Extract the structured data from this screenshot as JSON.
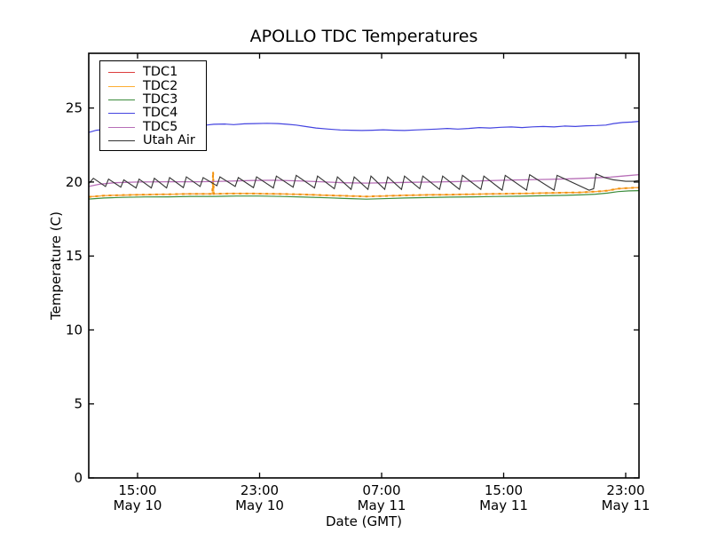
{
  "chart_data": {
    "type": "line",
    "title": "APOLLO TDC Temperatures",
    "xlabel": "Date (GMT)",
    "ylabel": "Temperature (C)",
    "grid": false,
    "legend_position": "upper left",
    "x_unit": "hours since May 10 12:00 GMT",
    "xlim": [
      -0.2,
      35.87
    ],
    "ylim": [
      0,
      28.7
    ],
    "y_ticks": [
      {
        "v": 0,
        "label": "0"
      },
      {
        "v": 5,
        "label": "5"
      },
      {
        "v": 10,
        "label": "10"
      },
      {
        "v": 15,
        "label": "15"
      },
      {
        "v": 20,
        "label": "20"
      },
      {
        "v": 25,
        "label": "25"
      }
    ],
    "x_ticks": [
      {
        "h": 3,
        "time": "15:00",
        "date": "May 10"
      },
      {
        "h": 11,
        "time": "23:00",
        "date": "May 10"
      },
      {
        "h": 19,
        "time": "07:00",
        "date": "May 11"
      },
      {
        "h": 27,
        "time": "15:00",
        "date": "May 11"
      },
      {
        "h": 35,
        "time": "23:00",
        "date": "May 11"
      }
    ],
    "series": [
      {
        "name": "TDC1",
        "color": "#dd3e3e",
        "width": 1.2,
        "points": [
          [
            -0.2,
            19.0
          ],
          [
            0.8,
            19.08
          ],
          [
            2,
            19.12
          ],
          [
            3.5,
            19.15
          ],
          [
            5,
            19.17
          ],
          [
            6.5,
            19.2
          ],
          [
            8,
            19.2
          ],
          [
            9,
            19.22
          ],
          [
            10.5,
            19.22
          ],
          [
            12,
            19.2
          ],
          [
            13.5,
            19.17
          ],
          [
            15,
            19.12
          ],
          [
            16.5,
            19.07
          ],
          [
            18,
            19.02
          ],
          [
            19,
            19.05
          ],
          [
            20.5,
            19.1
          ],
          [
            22,
            19.13
          ],
          [
            23.5,
            19.15
          ],
          [
            25,
            19.18
          ],
          [
            26.5,
            19.2
          ],
          [
            28,
            19.22
          ],
          [
            29.5,
            19.25
          ],
          [
            31,
            19.28
          ],
          [
            32,
            19.3
          ],
          [
            33,
            19.35
          ],
          [
            33.8,
            19.42
          ],
          [
            34.5,
            19.55
          ],
          [
            35.2,
            19.6
          ],
          [
            35.87,
            19.62
          ]
        ]
      },
      {
        "name": "TDC2",
        "color": "#fdae33",
        "width": 1.2,
        "dash_color": "#f0900e",
        "points": [
          [
            -0.2,
            19.0
          ],
          [
            0.8,
            19.08
          ],
          [
            2,
            19.12
          ],
          [
            3.5,
            19.15
          ],
          [
            5,
            19.17
          ],
          [
            6.5,
            19.2
          ],
          [
            7.9,
            19.2
          ],
          [
            7.95,
            20.7
          ],
          [
            8.0,
            19.2
          ],
          [
            9,
            19.22
          ],
          [
            10.5,
            19.22
          ],
          [
            12,
            19.2
          ],
          [
            13.5,
            19.17
          ],
          [
            15,
            19.12
          ],
          [
            16.5,
            19.07
          ],
          [
            18,
            19.02
          ],
          [
            19,
            19.05
          ],
          [
            20.5,
            19.1
          ],
          [
            22,
            19.13
          ],
          [
            23.5,
            19.15
          ],
          [
            25,
            19.18
          ],
          [
            26.5,
            19.2
          ],
          [
            28,
            19.22
          ],
          [
            29.5,
            19.25
          ],
          [
            31,
            19.28
          ],
          [
            32,
            19.3
          ],
          [
            33,
            19.35
          ],
          [
            33.8,
            19.42
          ],
          [
            34.5,
            19.55
          ],
          [
            35.2,
            19.6
          ],
          [
            35.87,
            19.62
          ]
        ]
      },
      {
        "name": "TDC3",
        "color": "#3c8c3c",
        "width": 1.2,
        "points": [
          [
            -0.2,
            18.85
          ],
          [
            0.8,
            18.92
          ],
          [
            2,
            18.96
          ],
          [
            3.5,
            18.99
          ],
          [
            5,
            19.0
          ],
          [
            6.5,
            19.03
          ],
          [
            8,
            19.03
          ],
          [
            9.5,
            19.05
          ],
          [
            11,
            19.05
          ],
          [
            12.5,
            19.02
          ],
          [
            14,
            18.98
          ],
          [
            15.5,
            18.93
          ],
          [
            17,
            18.88
          ],
          [
            18,
            18.84
          ],
          [
            19,
            18.87
          ],
          [
            20.5,
            18.92
          ],
          [
            22,
            18.95
          ],
          [
            23.5,
            18.98
          ],
          [
            25,
            19.0
          ],
          [
            26.5,
            19.02
          ],
          [
            28,
            19.04
          ],
          [
            29.5,
            19.07
          ],
          [
            31,
            19.1
          ],
          [
            32,
            19.13
          ],
          [
            33,
            19.18
          ],
          [
            33.8,
            19.25
          ],
          [
            34.5,
            19.35
          ],
          [
            35.2,
            19.4
          ],
          [
            35.87,
            19.42
          ]
        ]
      },
      {
        "name": "TDC4",
        "color": "#4444e0",
        "width": 1.2,
        "points": [
          [
            -0.2,
            23.35
          ],
          [
            0.3,
            23.5
          ],
          [
            0.8,
            23.55
          ],
          [
            1.5,
            23.62
          ],
          [
            2.5,
            23.7
          ],
          [
            3.5,
            23.75
          ],
          [
            4.5,
            23.8
          ],
          [
            5.5,
            23.82
          ],
          [
            6.3,
            23.87
          ],
          [
            7,
            23.88
          ],
          [
            7.5,
            23.85
          ],
          [
            8,
            23.9
          ],
          [
            8.7,
            23.92
          ],
          [
            9.3,
            23.88
          ],
          [
            10,
            23.93
          ],
          [
            10.7,
            23.95
          ],
          [
            11.5,
            23.97
          ],
          [
            12.2,
            23.95
          ],
          [
            12.8,
            23.9
          ],
          [
            13.4,
            23.85
          ],
          [
            14,
            23.75
          ],
          [
            14.7,
            23.65
          ],
          [
            15.5,
            23.58
          ],
          [
            16.3,
            23.52
          ],
          [
            17,
            23.5
          ],
          [
            17.7,
            23.48
          ],
          [
            18.4,
            23.5
          ],
          [
            19.1,
            23.53
          ],
          [
            19.8,
            23.5
          ],
          [
            20.5,
            23.48
          ],
          [
            21.2,
            23.52
          ],
          [
            21.9,
            23.55
          ],
          [
            22.6,
            23.58
          ],
          [
            23.3,
            23.62
          ],
          [
            24,
            23.58
          ],
          [
            24.7,
            23.62
          ],
          [
            25.4,
            23.68
          ],
          [
            26.1,
            23.65
          ],
          [
            26.8,
            23.7
          ],
          [
            27.5,
            23.72
          ],
          [
            28.2,
            23.68
          ],
          [
            28.9,
            23.73
          ],
          [
            29.6,
            23.75
          ],
          [
            30.3,
            23.72
          ],
          [
            31,
            23.78
          ],
          [
            31.7,
            23.75
          ],
          [
            32.4,
            23.8
          ],
          [
            33.1,
            23.82
          ],
          [
            33.7,
            23.85
          ],
          [
            34.2,
            23.95
          ],
          [
            34.8,
            24.02
          ],
          [
            35.4,
            24.05
          ],
          [
            35.87,
            24.1
          ]
        ]
      },
      {
        "name": "TDC5",
        "color": "#b76eb7",
        "width": 1.3,
        "points": [
          [
            -0.2,
            19.7
          ],
          [
            0.5,
            19.85
          ],
          [
            1.5,
            19.95
          ],
          [
            3,
            20.0
          ],
          [
            5,
            20.02
          ],
          [
            7,
            20.02
          ],
          [
            9,
            20.06
          ],
          [
            10.5,
            20.1
          ],
          [
            12,
            20.12
          ],
          [
            13.5,
            20.08
          ],
          [
            15,
            20.02
          ],
          [
            16.5,
            19.95
          ],
          [
            18,
            19.93
          ],
          [
            19.5,
            19.95
          ],
          [
            21,
            19.98
          ],
          [
            22.5,
            20.0
          ],
          [
            24,
            20.03
          ],
          [
            25.5,
            20.08
          ],
          [
            27,
            20.12
          ],
          [
            28.5,
            20.15
          ],
          [
            30,
            20.18
          ],
          [
            31.5,
            20.22
          ],
          [
            33,
            20.28
          ],
          [
            34,
            20.33
          ],
          [
            34.8,
            20.4
          ],
          [
            35.87,
            20.5
          ]
        ]
      },
      {
        "name": "Utah Air",
        "color": "#333333",
        "width": 1.1,
        "points": [
          [
            -0.2,
            19.9
          ],
          [
            0.1,
            20.25
          ],
          [
            0.9,
            19.7
          ],
          [
            1.1,
            20.2
          ],
          [
            1.9,
            19.65
          ],
          [
            2.1,
            20.15
          ],
          [
            2.9,
            19.6
          ],
          [
            3.1,
            20.2
          ],
          [
            3.9,
            19.6
          ],
          [
            4.1,
            20.25
          ],
          [
            4.9,
            19.6
          ],
          [
            5.1,
            20.3
          ],
          [
            6.0,
            19.62
          ],
          [
            6.2,
            20.35
          ],
          [
            7.1,
            19.7
          ],
          [
            7.3,
            20.3
          ],
          [
            8.2,
            19.75
          ],
          [
            8.4,
            20.35
          ],
          [
            9.4,
            19.7
          ],
          [
            9.6,
            20.3
          ],
          [
            10.6,
            19.62
          ],
          [
            10.8,
            20.35
          ],
          [
            11.9,
            19.6
          ],
          [
            12.1,
            20.4
          ],
          [
            13.2,
            19.65
          ],
          [
            13.4,
            20.45
          ],
          [
            14.6,
            19.6
          ],
          [
            14.8,
            20.4
          ],
          [
            15.9,
            19.55
          ],
          [
            16.1,
            20.35
          ],
          [
            17.0,
            19.5
          ],
          [
            17.2,
            20.35
          ],
          [
            18.1,
            19.5
          ],
          [
            18.3,
            20.4
          ],
          [
            19.2,
            19.5
          ],
          [
            19.4,
            20.35
          ],
          [
            20.3,
            19.5
          ],
          [
            20.5,
            20.4
          ],
          [
            21.5,
            19.55
          ],
          [
            21.7,
            20.4
          ],
          [
            22.8,
            19.5
          ],
          [
            23.0,
            20.4
          ],
          [
            24.1,
            19.5
          ],
          [
            24.3,
            20.45
          ],
          [
            25.5,
            19.5
          ],
          [
            25.7,
            20.4
          ],
          [
            26.9,
            19.45
          ],
          [
            27.1,
            20.45
          ],
          [
            28.5,
            19.45
          ],
          [
            28.7,
            20.5
          ],
          [
            30.3,
            19.45
          ],
          [
            30.5,
            20.45
          ],
          [
            32.6,
            19.45
          ],
          [
            32.9,
            19.55
          ],
          [
            33.05,
            20.55
          ],
          [
            33.6,
            20.3
          ],
          [
            34.2,
            20.15
          ],
          [
            35.0,
            20.05
          ],
          [
            35.5,
            20.05
          ],
          [
            35.87,
            20.1
          ]
        ]
      }
    ]
  }
}
